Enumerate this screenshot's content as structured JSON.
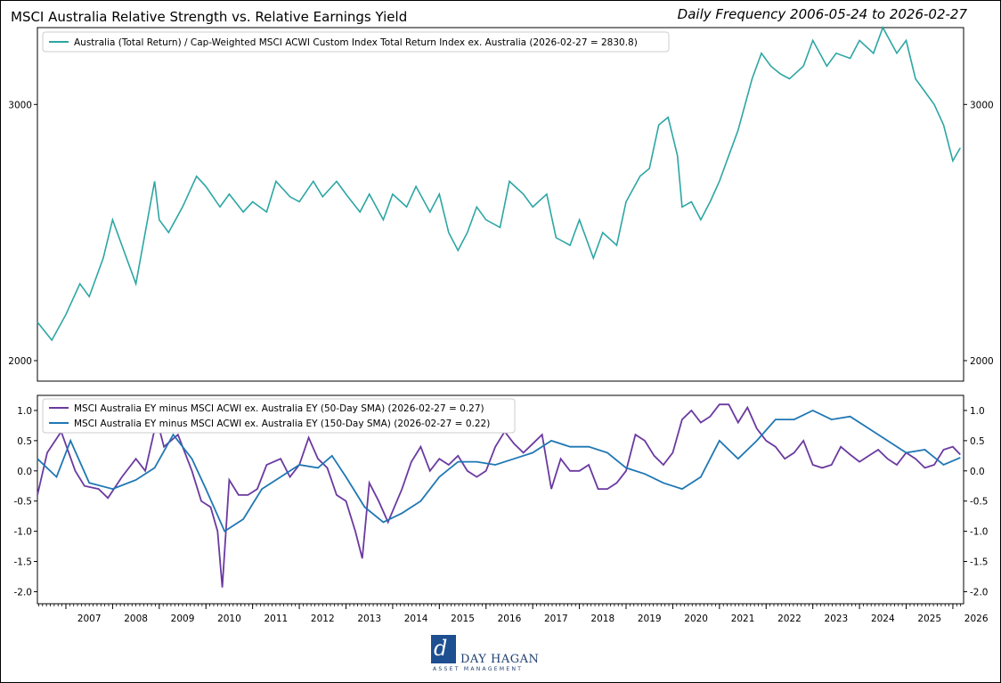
{
  "header": {
    "title": "MSCI Australia Relative Strength vs. Relative Earnings Yield",
    "subtitle": "Daily Frequency 2006-05-24 to 2026-02-27"
  },
  "chart_data": [
    {
      "type": "line",
      "xlim": [
        2006.39,
        2026.23
      ],
      "ylim": [
        1920,
        3300
      ],
      "yticks": [
        2000,
        3000
      ],
      "y_tick_labels": [
        "2000",
        "3000"
      ],
      "legend_position": "top-left",
      "grid": false,
      "series": [
        {
          "name": "Australia (Total Return) / Cap-Weighted MSCI ACWI Custom Index Total Return Index ex. Australia (2026-02-27 = 2830.8)",
          "color": "#2ca6a4",
          "x": [
            2006.39,
            2006.7,
            2007.0,
            2007.3,
            2007.5,
            2007.8,
            2008.0,
            2008.3,
            2008.5,
            2008.8,
            2008.9,
            2009.0,
            2009.2,
            2009.5,
            2009.8,
            2010.0,
            2010.3,
            2010.5,
            2010.8,
            2011.0,
            2011.3,
            2011.5,
            2011.8,
            2012.0,
            2012.3,
            2012.5,
            2012.8,
            2013.0,
            2013.3,
            2013.5,
            2013.8,
            2014.0,
            2014.3,
            2014.5,
            2014.8,
            2015.0,
            2015.2,
            2015.4,
            2015.6,
            2015.8,
            2016.0,
            2016.3,
            2016.5,
            2016.8,
            2017.0,
            2017.3,
            2017.5,
            2017.8,
            2018.0,
            2018.3,
            2018.5,
            2018.8,
            2019.0,
            2019.3,
            2019.5,
            2019.7,
            2019.9,
            2020.1,
            2020.2,
            2020.4,
            2020.6,
            2020.8,
            2021.0,
            2021.2,
            2021.4,
            2021.7,
            2021.9,
            2022.1,
            2022.3,
            2022.5,
            2022.8,
            2023.0,
            2023.3,
            2023.5,
            2023.8,
            2024.0,
            2024.3,
            2024.5,
            2024.8,
            2025.0,
            2025.2,
            2025.4,
            2025.6,
            2025.8,
            2026.0,
            2026.16
          ],
          "y": [
            2150,
            2080,
            2180,
            2300,
            2250,
            2400,
            2550,
            2400,
            2300,
            2600,
            2700,
            2550,
            2500,
            2600,
            2720,
            2680,
            2600,
            2650,
            2580,
            2620,
            2580,
            2700,
            2640,
            2620,
            2700,
            2640,
            2700,
            2650,
            2580,
            2650,
            2550,
            2650,
            2600,
            2680,
            2580,
            2650,
            2500,
            2430,
            2500,
            2600,
            2550,
            2520,
            2700,
            2650,
            2600,
            2650,
            2480,
            2450,
            2550,
            2400,
            2500,
            2450,
            2620,
            2720,
            2750,
            2920,
            2950,
            2800,
            2600,
            2620,
            2550,
            2620,
            2700,
            2800,
            2900,
            3100,
            3200,
            3150,
            3120,
            3100,
            3150,
            3250,
            3150,
            3200,
            3180,
            3250,
            3200,
            3300,
            3200,
            3250,
            3100,
            3050,
            3000,
            2920,
            2780,
            2830.8
          ]
        }
      ]
    },
    {
      "type": "line",
      "xlim": [
        2006.39,
        2026.23
      ],
      "ylim": [
        -2.2,
        1.25
      ],
      "yticks": [
        1.0,
        0.5,
        0.0,
        -0.5,
        -1.0,
        -1.5,
        -2.0
      ],
      "y_tick_labels": [
        "1.0",
        "0.5",
        "0.0",
        "-0.5",
        "-1.0",
        "-1.5",
        "-2.0"
      ],
      "x_tick_labels": [
        "2007",
        "2008",
        "2009",
        "2010",
        "2011",
        "2012",
        "2013",
        "2014",
        "2015",
        "2016",
        "2017",
        "2018",
        "2019",
        "2020",
        "2021",
        "2022",
        "2023",
        "2024",
        "2025",
        "2026"
      ],
      "xticks": [
        2007,
        2008,
        2009,
        2010,
        2011,
        2012,
        2013,
        2014,
        2015,
        2016,
        2017,
        2018,
        2019,
        2020,
        2021,
        2022,
        2023,
        2024,
        2025,
        2026
      ],
      "legend_position": "top-left",
      "grid": false,
      "series": [
        {
          "name": "MSCI Australia EY minus MSCI ACWI ex. Australia EY (50-Day SMA) (2026-02-27 = 0.27)",
          "color": "#6b3aa0",
          "x": [
            2006.39,
            2006.6,
            2006.9,
            2007.2,
            2007.4,
            2007.7,
            2007.9,
            2008.2,
            2008.5,
            2008.7,
            2008.95,
            2009.1,
            2009.4,
            2009.7,
            2009.9,
            2010.1,
            2010.25,
            2010.35,
            2010.5,
            2010.7,
            2010.9,
            2011.1,
            2011.3,
            2011.6,
            2011.8,
            2012.0,
            2012.2,
            2012.4,
            2012.6,
            2012.8,
            2013.0,
            2013.2,
            2013.35,
            2013.5,
            2013.7,
            2013.9,
            2014.2,
            2014.4,
            2014.6,
            2014.8,
            2015.0,
            2015.2,
            2015.4,
            2015.6,
            2015.8,
            2016.0,
            2016.2,
            2016.4,
            2016.6,
            2016.8,
            2017.0,
            2017.2,
            2017.4,
            2017.6,
            2017.8,
            2018.0,
            2018.2,
            2018.4,
            2018.6,
            2018.8,
            2019.0,
            2019.2,
            2019.4,
            2019.6,
            2019.8,
            2020.0,
            2020.2,
            2020.4,
            2020.6,
            2020.8,
            2021.0,
            2021.2,
            2021.4,
            2021.6,
            2021.8,
            2022.0,
            2022.2,
            2022.4,
            2022.6,
            2022.8,
            2023.0,
            2023.2,
            2023.4,
            2023.6,
            2023.8,
            2024.0,
            2024.2,
            2024.4,
            2024.6,
            2024.8,
            2025.0,
            2025.2,
            2025.4,
            2025.6,
            2025.8,
            2026.0,
            2026.16
          ],
          "y": [
            -0.4,
            0.3,
            0.65,
            0.0,
            -0.25,
            -0.3,
            -0.45,
            -0.1,
            0.2,
            0.0,
            0.85,
            0.4,
            0.6,
            0.0,
            -0.5,
            -0.6,
            -1.0,
            -1.93,
            -0.15,
            -0.4,
            -0.4,
            -0.3,
            0.1,
            0.2,
            -0.1,
            0.1,
            0.55,
            0.2,
            0.05,
            -0.4,
            -0.5,
            -1.0,
            -1.45,
            -0.2,
            -0.5,
            -0.85,
            -0.3,
            0.15,
            0.4,
            0.0,
            0.2,
            0.1,
            0.25,
            0.0,
            -0.1,
            0.0,
            0.4,
            0.65,
            0.45,
            0.3,
            0.45,
            0.6,
            -0.3,
            0.2,
            0.0,
            0.0,
            0.1,
            -0.3,
            -0.3,
            -0.2,
            0.0,
            0.6,
            0.5,
            0.25,
            0.1,
            0.3,
            0.85,
            1.0,
            0.8,
            0.9,
            1.1,
            1.1,
            0.8,
            1.05,
            0.7,
            0.5,
            0.4,
            0.2,
            0.3,
            0.5,
            0.1,
            0.05,
            0.1,
            0.4,
            0.27,
            0.15,
            0.25,
            0.35,
            0.2,
            0.1,
            0.3,
            0.2,
            0.05,
            0.1,
            0.35,
            0.4,
            0.27
          ]
        },
        {
          "name": "MSCI Australia EY minus MSCI ACWI ex. Australia EY (150-Day SMA) (2026-02-27 = 0.22)",
          "color": "#1f77b4",
          "x": [
            2006.39,
            2006.8,
            2007.1,
            2007.5,
            2008.0,
            2008.5,
            2008.9,
            2009.3,
            2009.7,
            2010.0,
            2010.4,
            2010.8,
            2011.2,
            2011.6,
            2012.0,
            2012.4,
            2012.7,
            2013.0,
            2013.4,
            2013.8,
            2014.2,
            2014.6,
            2015.0,
            2015.4,
            2015.8,
            2016.2,
            2016.6,
            2017.0,
            2017.4,
            2017.8,
            2018.2,
            2018.6,
            2019.0,
            2019.4,
            2019.8,
            2020.2,
            2020.6,
            2021.0,
            2021.4,
            2021.8,
            2022.2,
            2022.6,
            2023.0,
            2023.4,
            2023.8,
            2024.2,
            2024.6,
            2025.0,
            2025.4,
            2025.8,
            2026.16
          ],
          "y": [
            0.2,
            -0.1,
            0.5,
            -0.2,
            -0.3,
            -0.15,
            0.05,
            0.6,
            0.2,
            -0.3,
            -1.0,
            -0.8,
            -0.3,
            -0.1,
            0.1,
            0.05,
            0.25,
            -0.1,
            -0.6,
            -0.85,
            -0.7,
            -0.5,
            -0.1,
            0.15,
            0.15,
            0.1,
            0.2,
            0.3,
            0.5,
            0.4,
            0.4,
            0.3,
            0.05,
            -0.05,
            -0.2,
            -0.3,
            -0.1,
            0.5,
            0.2,
            0.5,
            0.85,
            0.85,
            1.0,
            0.85,
            0.9,
            0.7,
            0.5,
            0.3,
            0.35,
            0.1,
            0.22
          ]
        }
      ]
    }
  ],
  "logo": {
    "mark": "d",
    "name": "DAY HAGAN",
    "sub": "ASSET MANAGEMENT"
  }
}
